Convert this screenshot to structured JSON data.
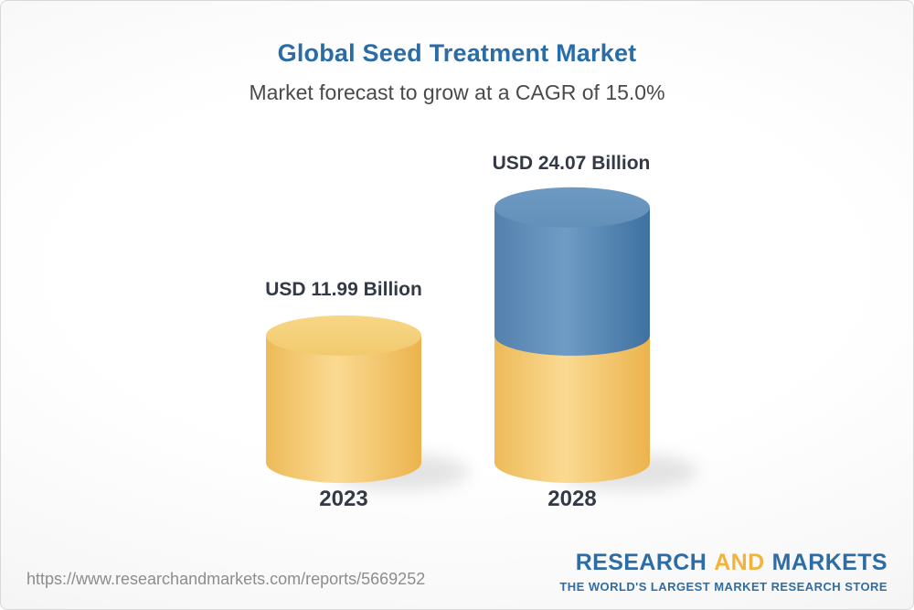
{
  "header": {
    "title": "Global Seed Treatment Market",
    "title_color": "#2a6ca5",
    "subtitle": "Market forecast to grow at a CAGR of 15.0%",
    "subtitle_color": "#4a4a4a"
  },
  "chart_data": {
    "type": "bar",
    "subtype": "3d-stacked-cylinders",
    "title": "Global Seed Treatment Market",
    "subtitle": "Market forecast to grow at a CAGR of 15.0%",
    "unit": "USD Billion",
    "cagr_percent": 15.0,
    "categories": [
      "2023",
      "2028"
    ],
    "values": [
      11.99,
      24.07
    ],
    "value_labels": [
      "USD 11.99 Billion",
      "USD 24.07 Billion"
    ],
    "legend": "none",
    "grid": false,
    "bars": [
      {
        "category": "2023",
        "value": 11.99,
        "value_label": "USD 11.99 Billion",
        "segments": [
          {
            "value": 11.99,
            "color": "yellow"
          }
        ]
      },
      {
        "category": "2028",
        "value": 24.07,
        "value_label": "USD 24.07 Billion",
        "segments": [
          {
            "value": 11.99,
            "color": "yellow"
          },
          {
            "value": 12.08,
            "color": "blue"
          }
        ]
      }
    ],
    "colors": {
      "yellow": "#f5cf79",
      "blue": "#6494bd",
      "label_text": "#333a45"
    }
  },
  "footer": {
    "url": "https://www.researchandmarkets.com/reports/5669252",
    "logo": {
      "word1": "RESEARCH",
      "word2": "AND",
      "word3": "MARKETS",
      "tagline": "THE WORLD'S LARGEST MARKET RESEARCH STORE",
      "blue": "#2e6da4",
      "gold": "#f0b43c"
    }
  }
}
